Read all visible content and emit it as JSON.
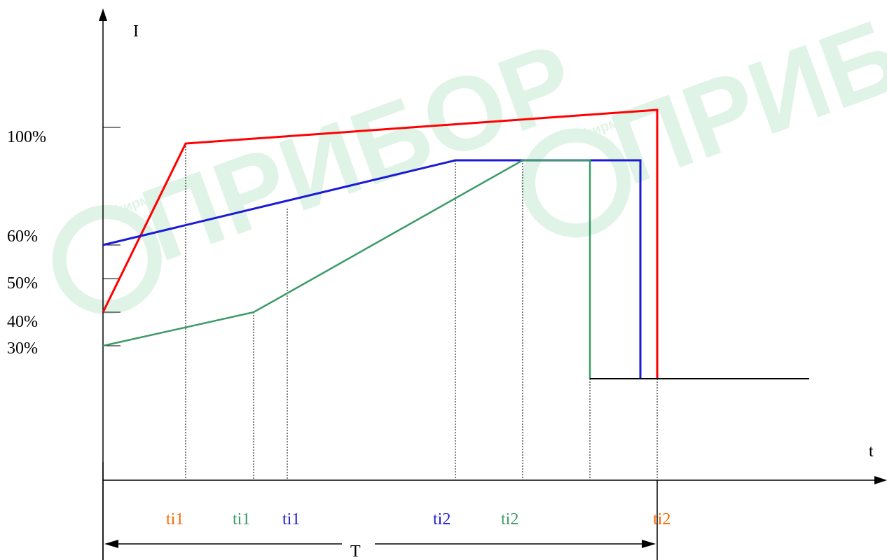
{
  "watermark": {
    "text": "ПРИБОР",
    "small": "фирма",
    "color": "#dff3e6"
  },
  "axes": {
    "y_label": "I",
    "x_label": "t",
    "period_label": "T"
  },
  "y_ticks": [
    "100%",
    "60%",
    "50%",
    "40%",
    "30%"
  ],
  "time_labels": [
    {
      "text": "ti1",
      "color": "#ff6600"
    },
    {
      "text": "ti1",
      "color": "#3c9a68"
    },
    {
      "text": "ti1",
      "color": "#1a1ad6"
    },
    {
      "text": "ti2",
      "color": "#1a1ad6"
    },
    {
      "text": "ti2",
      "color": "#3c9a68"
    },
    {
      "text": "ti2",
      "color": "#ff6600"
    }
  ],
  "chart_data": {
    "type": "line",
    "series": [
      {
        "color": "#ff0000"
      },
      {
        "color": "#1a1ad6"
      },
      {
        "color": "#3c9a68"
      }
    ]
  }
}
